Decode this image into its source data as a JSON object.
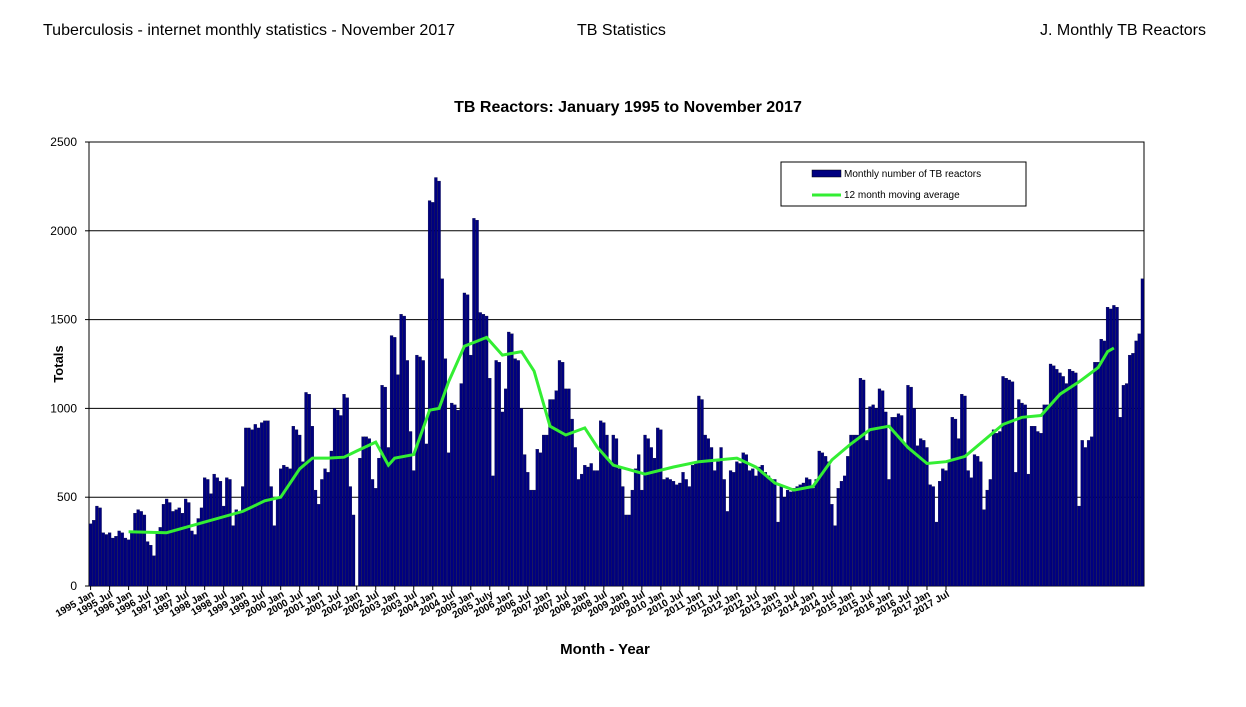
{
  "header": {
    "left": "Tuberculosis - internet monthly statistics - November 2017",
    "center": "TB Statistics",
    "right": "J. Monthly TB Reactors"
  },
  "colors": {
    "bar": "#000080",
    "moving_average": "#33ee33",
    "grid": "#000000"
  },
  "chart_data": {
    "type": "bar",
    "title": "TB Reactors: January 1995 to November 2017",
    "xlabel": "Month - Year",
    "ylabel": "Totals",
    "ylim": [
      0,
      2500
    ],
    "yticks": [
      0,
      500,
      1000,
      1500,
      2000,
      2500
    ],
    "grid": true,
    "legend_position": "top-right",
    "x_tick_labels": [
      "1995 Jan",
      "1995 Jul",
      "1996 Jan",
      "1996 Jul",
      "1997 Jan",
      "1997 Jul",
      "1998 Jan",
      "1998 Jul",
      "1999 Jan",
      "1999 Jul",
      "2000 Jan",
      "2000 Jul",
      "2001 Jan",
      "2001 Jul",
      "2002 Jan",
      "2002 Jul",
      "2003 Jan",
      "2003 Jul",
      "2004 Jan",
      "2004 Jul",
      "2005 Jan",
      "2005 July",
      "2006 Jan",
      "2006 Jul",
      "2007 Jan",
      "2007 Jul",
      "2008 Jan",
      "2008 Jul",
      "2009 Jan",
      "2009 Jul",
      "2010 Jan",
      "2010 Jul",
      "2011 Jan",
      "2011 Jul",
      "2012 Jan",
      "2012 Jul",
      "2013 Jan",
      "2013 Jul",
      "2014 Jan",
      "2014 Jul",
      "2015 Jan",
      "2015 Jul",
      "2016 Jan",
      "2016 Jul",
      "2017 Jan",
      "2017 Jul"
    ],
    "x": {
      "start": "1995-01",
      "end": "2017-11",
      "interval": "month"
    },
    "series": [
      {
        "name": "Monthly number of TB reactors",
        "type": "bar",
        "values": [
          350,
          370,
          450,
          440,
          300,
          290,
          300,
          270,
          280,
          310,
          300,
          270,
          260,
          300,
          410,
          430,
          420,
          400,
          250,
          230,
          170,
          300,
          330,
          460,
          490,
          470,
          420,
          430,
          440,
          410,
          490,
          470,
          310,
          290,
          380,
          440,
          610,
          600,
          520,
          630,
          610,
          590,
          450,
          610,
          600,
          340,
          430,
          410,
          560,
          890,
          890,
          880,
          910,
          890,
          920,
          930,
          930,
          560,
          340,
          500,
          660,
          680,
          670,
          660,
          900,
          880,
          850,
          700,
          1090,
          1080,
          900,
          540,
          460,
          600,
          660,
          640,
          760,
          1000,
          990,
          960,
          1080,
          1060,
          560,
          400,
          0,
          720,
          840,
          840,
          830,
          600,
          550,
          720,
          1130,
          1120,
          780,
          1410,
          1400,
          1190,
          1530,
          1520,
          1270,
          870,
          650,
          1300,
          1290,
          1270,
          800,
          2170,
          2160,
          2300,
          2280,
          1730,
          1280,
          750,
          1030,
          1020,
          990,
          1140,
          1650,
          1640,
          1300,
          2070,
          2060,
          1540,
          1530,
          1520,
          1170,
          620,
          1270,
          1260,
          980,
          1110,
          1430,
          1420,
          1280,
          1270,
          1000,
          740,
          640,
          540,
          540,
          770,
          750,
          850,
          850,
          1050,
          1050,
          1100,
          1270,
          1260,
          1110,
          1110,
          940,
          780,
          600,
          630,
          680,
          670,
          690,
          650,
          650,
          930,
          920,
          850,
          700,
          850,
          830,
          660,
          560,
          400,
          400,
          540,
          660,
          740,
          540,
          850,
          830,
          780,
          720,
          890,
          880,
          600,
          610,
          600,
          590,
          570,
          580,
          640,
          600,
          560,
          680,
          700,
          1070,
          1050,
          850,
          830,
          780,
          650,
          700,
          780,
          600,
          420,
          650,
          640,
          700,
          690,
          750,
          740,
          650,
          660,
          620,
          670,
          680,
          640,
          620,
          600,
          600,
          360,
          560,
          500,
          540,
          530,
          550,
          560,
          570,
          580,
          610,
          600,
          550,
          600,
          760,
          750,
          730,
          700,
          460,
          340,
          550,
          590,
          620,
          730,
          850,
          850,
          850,
          1170,
          1160,
          820,
          1010,
          1020,
          1000,
          1110,
          1100,
          980,
          600,
          950,
          950,
          970,
          960,
          800,
          1130,
          1120,
          1000,
          790,
          830,
          820,
          780,
          570,
          560,
          360,
          590,
          660,
          650,
          700,
          950,
          940,
          830,
          1080,
          1070,
          650,
          610,
          740,
          730,
          700,
          430,
          540,
          600,
          880,
          860,
          870,
          1180,
          1170,
          1160,
          1150,
          640,
          1050,
          1030,
          1020,
          630,
          900,
          900,
          870,
          860,
          1020,
          1020,
          1250,
          1240,
          1220,
          1200,
          1180,
          1140,
          1220,
          1210,
          1200,
          450,
          820,
          780,
          820,
          840,
          1260,
          1260,
          1390,
          1380,
          1570,
          1560,
          1580,
          1570,
          950,
          1130,
          1140,
          1300,
          1310,
          1380,
          1420,
          1730
        ]
      },
      {
        "name": "12 month moving average",
        "type": "line",
        "points": [
          [
            12,
            305
          ],
          [
            24,
            300
          ],
          [
            36,
            360
          ],
          [
            48,
            420
          ],
          [
            55,
            480
          ],
          [
            60,
            500
          ],
          [
            66,
            660
          ],
          [
            70,
            720
          ],
          [
            75,
            720
          ],
          [
            80,
            725
          ],
          [
            84,
            760
          ],
          [
            90,
            810
          ],
          [
            94,
            680
          ],
          [
            96,
            720
          ],
          [
            102,
            740
          ],
          [
            107,
            990
          ],
          [
            110,
            1000
          ],
          [
            113,
            1150
          ],
          [
            118,
            1350
          ],
          [
            125,
            1400
          ],
          [
            130,
            1300
          ],
          [
            136,
            1320
          ],
          [
            140,
            1210
          ],
          [
            145,
            900
          ],
          [
            150,
            850
          ],
          [
            156,
            890
          ],
          [
            160,
            780
          ],
          [
            165,
            680
          ],
          [
            175,
            630
          ],
          [
            184,
            670
          ],
          [
            192,
            700
          ],
          [
            204,
            720
          ],
          [
            210,
            670
          ],
          [
            216,
            580
          ],
          [
            222,
            540
          ],
          [
            228,
            560
          ],
          [
            234,
            710
          ],
          [
            240,
            800
          ],
          [
            246,
            880
          ],
          [
            252,
            900
          ],
          [
            258,
            780
          ],
          [
            264,
            690
          ],
          [
            270,
            700
          ],
          [
            276,
            730
          ],
          [
            282,
            820
          ],
          [
            288,
            910
          ],
          [
            294,
            950
          ],
          [
            300,
            960
          ],
          [
            306,
            1080
          ],
          [
            312,
            1150
          ],
          [
            318,
            1230
          ],
          [
            321,
            1320
          ],
          [
            323,
            1340
          ]
        ]
      }
    ]
  }
}
